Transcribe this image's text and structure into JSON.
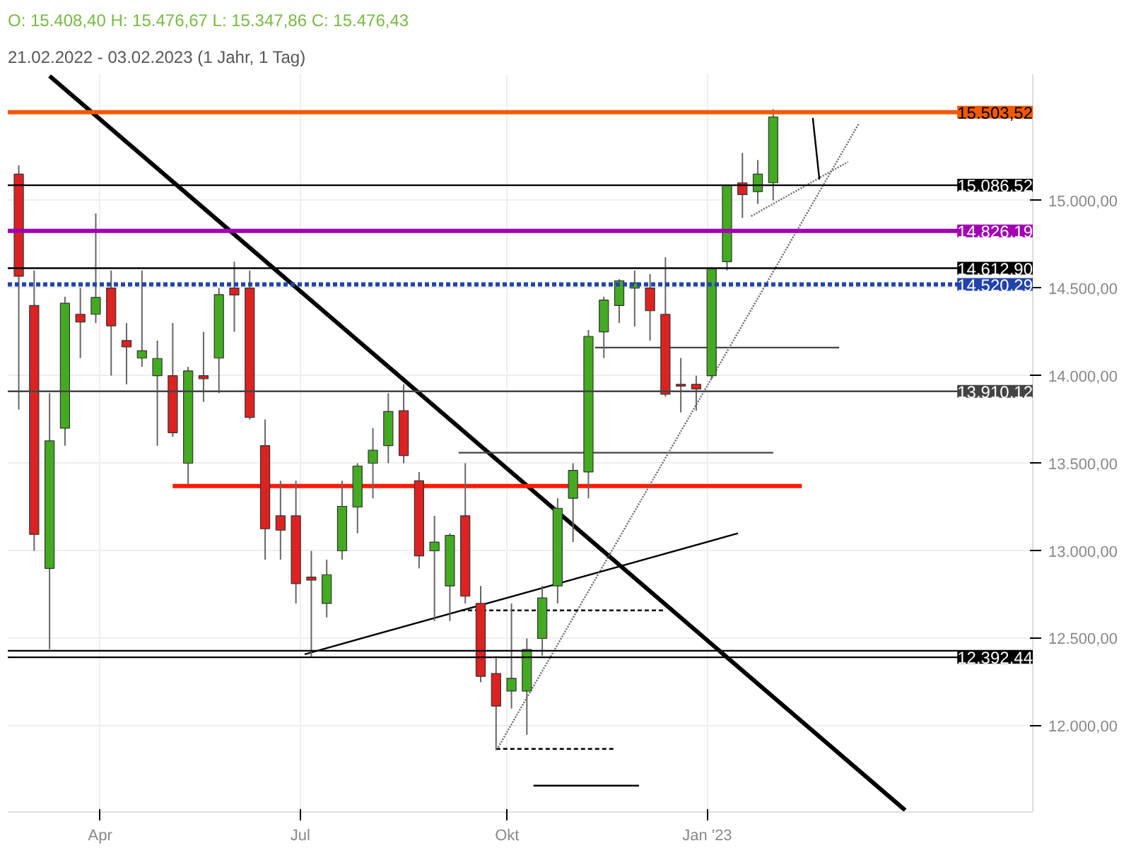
{
  "chart_data": {
    "type": "candlestick",
    "title": "O: 15.408,40  H: 15.476,67  L: 15.347,86  C: 15.476,43",
    "subtitle": "21.02.2022 - 03.02.2023  (1 Jahr, 1 Tag)",
    "x": [
      "2022-02-23",
      "2022-03-02",
      "2022-03-09",
      "2022-03-16",
      "2022-03-23",
      "2022-03-30",
      "2022-04-06",
      "2022-04-13",
      "2022-04-20",
      "2022-04-27",
      "2022-05-04",
      "2022-05-11",
      "2022-05-18",
      "2022-05-25",
      "2022-06-01",
      "2022-06-08",
      "2022-06-15",
      "2022-06-22",
      "2022-06-29",
      "2022-07-06",
      "2022-07-13",
      "2022-07-20",
      "2022-07-27",
      "2022-08-03",
      "2022-08-10",
      "2022-08-17",
      "2022-08-24",
      "2022-08-31",
      "2022-09-07",
      "2022-09-14",
      "2022-09-21",
      "2022-09-28",
      "2022-10-05",
      "2022-10-12",
      "2022-10-19",
      "2022-10-26",
      "2022-11-02",
      "2022-11-09",
      "2022-11-16",
      "2022-11-23",
      "2022-11-30",
      "2022-12-07",
      "2022-12-14",
      "2022-12-21",
      "2022-12-28",
      "2023-01-04",
      "2023-01-11",
      "2023-01-18",
      "2023-01-25",
      "2023-02-01"
    ],
    "ohlc": [
      [
        15150,
        15200,
        13807,
        14567
      ],
      [
        14400,
        14600,
        13000,
        13094
      ],
      [
        12900,
        13900,
        12439,
        13628
      ],
      [
        13700,
        14450,
        13600,
        14413
      ],
      [
        14350,
        14500,
        14100,
        14306
      ],
      [
        14350,
        14925,
        14300,
        14446
      ],
      [
        14500,
        14600,
        14000,
        14284
      ],
      [
        14200,
        14300,
        13950,
        14164
      ],
      [
        14100,
        14600,
        14050,
        14142
      ],
      [
        14000,
        14200,
        13600,
        14098
      ],
      [
        14000,
        14300,
        13650,
        13674
      ],
      [
        13500,
        14050,
        13380,
        14027
      ],
      [
        14000,
        14250,
        13850,
        13982
      ],
      [
        14100,
        14500,
        13900,
        14462
      ],
      [
        14500,
        14650,
        14250,
        14460
      ],
      [
        14500,
        14600,
        13750,
        13762
      ],
      [
        13600,
        13750,
        12950,
        13126
      ],
      [
        13200,
        13400,
        12950,
        13118
      ],
      [
        13200,
        13400,
        12700,
        12813
      ],
      [
        12850,
        13000,
        12390,
        12833
      ],
      [
        12700,
        12950,
        12620,
        12864
      ],
      [
        13000,
        13400,
        12950,
        13254
      ],
      [
        13250,
        13500,
        13100,
        13484
      ],
      [
        13500,
        13700,
        13300,
        13574
      ],
      [
        13600,
        13900,
        13500,
        13795
      ],
      [
        13800,
        13950,
        13500,
        13544
      ],
      [
        13400,
        13450,
        12900,
        12971
      ],
      [
        13000,
        13200,
        12600,
        13050
      ],
      [
        12800,
        13100,
        12600,
        13088
      ],
      [
        13200,
        13500,
        12700,
        12741
      ],
      [
        12700,
        12800,
        12250,
        12284
      ],
      [
        12300,
        12400,
        11862,
        12114
      ],
      [
        12200,
        12700,
        12100,
        12273
      ],
      [
        12200,
        12500,
        11950,
        12437
      ],
      [
        12500,
        12800,
        12400,
        12731
      ],
      [
        12800,
        13300,
        12700,
        13243
      ],
      [
        13300,
        13500,
        13050,
        13459
      ],
      [
        13450,
        14260,
        13300,
        14224
      ],
      [
        14250,
        14450,
        14100,
        14431
      ],
      [
        14400,
        14550,
        14300,
        14541
      ],
      [
        14500,
        14600,
        14280,
        14529
      ],
      [
        14500,
        14580,
        14200,
        14370
      ],
      [
        14350,
        14675,
        13880,
        13894
      ],
      [
        13950,
        14100,
        13790,
        13940
      ],
      [
        13950,
        14000,
        13800,
        13924
      ],
      [
        14000,
        14620,
        13980,
        14610
      ],
      [
        14650,
        15090,
        14600,
        15086
      ],
      [
        15100,
        15270,
        14900,
        15033
      ],
      [
        15050,
        15230,
        14980,
        15150
      ],
      [
        15100,
        15520,
        15000,
        15476
      ]
    ],
    "colors": [
      "#dd2222",
      "#dd2222",
      "#44aa22",
      "#44aa22",
      "#dd2222",
      "#44aa22",
      "#dd2222",
      "#dd2222",
      "#44aa22",
      "#44aa22",
      "#dd2222",
      "#44aa22",
      "#dd2222",
      "#44aa22",
      "#dd2222",
      "#dd2222",
      "#dd2222",
      "#dd2222",
      "#dd2222",
      "#dd2222",
      "#44aa22",
      "#44aa22",
      "#44aa22",
      "#44aa22",
      "#44aa22",
      "#dd2222",
      "#dd2222",
      "#44aa22",
      "#44aa22",
      "#dd2222",
      "#dd2222",
      "#dd2222",
      "#44aa22",
      "#44aa22",
      "#44aa22",
      "#44aa22",
      "#44aa22",
      "#44aa22",
      "#44aa22",
      "#44aa22",
      "#44aa22",
      "#dd2222",
      "#dd2222",
      "#dd2222",
      "#dd2222",
      "#44aa22",
      "#44aa22",
      "#dd2222",
      "#44aa22",
      "#44aa22"
    ],
    "series": [
      {
        "type": "line",
        "color": "#000000",
        "line_style": "solid",
        "x": [
          "2022-03-09",
          "2023-04-02"
        ],
        "values": [
          15710,
          11520
        ]
      },
      {
        "type": "line",
        "color": "#ff1a00",
        "line_style": "solid",
        "x": [
          "2022-05-04",
          "2023-02-14"
        ],
        "values": [
          13370,
          13370
        ]
      },
      {
        "type": "line",
        "color": "#000000",
        "line_style": "solid",
        "x": [
          "2022-07-03",
          "2023-01-16"
        ],
        "values": [
          12410,
          13100
        ]
      },
      {
        "type": "line",
        "color": "#444444",
        "line_style": "solid",
        "x": [
          "2022-09-11",
          "2023-02-01"
        ],
        "values": [
          13560,
          13560
        ]
      },
      {
        "type": "line",
        "color": "#444444",
        "line_style": "solid",
        "x": [
          "2022-11-12",
          "2023-03-03"
        ],
        "values": [
          14160,
          14160
        ]
      },
      {
        "type": "line",
        "color": "#000000",
        "line_style": "dashed",
        "x": [
          "2022-09-12",
          "2022-12-14"
        ],
        "values": [
          12660,
          12660
        ]
      },
      {
        "type": "line",
        "color": "#000000",
        "line_style": "dashed",
        "x": [
          "2022-09-28",
          "2022-11-21"
        ],
        "values": [
          11870,
          11870
        ]
      },
      {
        "type": "line",
        "color": "#000000",
        "line_style": "solid",
        "x": [
          "2022-10-15",
          "2022-12-02"
        ],
        "values": [
          11660,
          11660
        ]
      },
      {
        "type": "line",
        "color": "#666666",
        "line_style": "dotted",
        "x": [
          "2022-09-29",
          "2023-03-12"
        ],
        "values": [
          11880,
          15440
        ]
      },
      {
        "type": "line",
        "color": "#666666",
        "line_style": "dotted",
        "x": [
          "2023-01-22",
          "2023-03-07"
        ],
        "values": [
          14910,
          15220
        ]
      },
      {
        "type": "line",
        "color": "#000000",
        "line_style": "solid",
        "x": [
          "2023-02-19",
          "2023-02-22"
        ],
        "values": [
          15470,
          15120
        ]
      }
    ],
    "ref_lines": [
      {
        "axis": "y",
        "value": 15503.52,
        "label": "15.503,52",
        "color": "#f25a00"
      },
      {
        "axis": "y",
        "value": 15086.52,
        "label": "15.086,52",
        "color": "#000000"
      },
      {
        "axis": "y",
        "value": 14826.19,
        "label": "14.826,19",
        "color": "#a000b0"
      },
      {
        "axis": "y",
        "value": 14612.9,
        "label": "14.612,90",
        "color": "#000000"
      },
      {
        "axis": "y",
        "value": 14520.29,
        "label": "14.520,29",
        "color": "#2244aa",
        "line_style": "dashed"
      },
      {
        "axis": "y",
        "value": 13910.12,
        "label": "13.910,12",
        "color": "#444444"
      },
      {
        "axis": "y",
        "value": 12430,
        "label": null,
        "color": "#000000"
      },
      {
        "axis": "y",
        "value": 12392.44,
        "label": "12.392,44",
        "color": "#000000"
      }
    ],
    "xlim": [
      "2022-02-18",
      "2023-05-30"
    ],
    "xticks": [
      {
        "value": "2022-04-01",
        "label": "Apr"
      },
      {
        "value": "2022-07-01",
        "label": "Jul"
      },
      {
        "value": "2022-10-03",
        "label": "Okt"
      },
      {
        "value": "2023-01-02",
        "label": "Jan '23"
      }
    ],
    "ylim": [
      11510,
      15720
    ],
    "yticks": [
      {
        "value": 12000,
        "label": "12.000,00"
      },
      {
        "value": 12500,
        "label": "12.500,00"
      },
      {
        "value": 13000,
        "label": "13.000,00"
      },
      {
        "value": 13500,
        "label": "13.500,00"
      },
      {
        "value": 14000,
        "label": "14.000,00"
      },
      {
        "value": 14500,
        "label": "14.500,00"
      },
      {
        "value": 15000,
        "label": "15.000,00"
      }
    ],
    "grid": true
  }
}
